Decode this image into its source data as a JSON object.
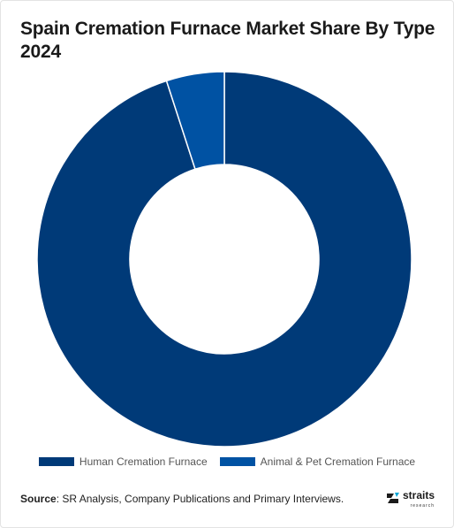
{
  "title": "Spain Cremation Furnace Market Share By Type 2024",
  "chart_data": {
    "type": "pie",
    "donut": true,
    "title": "Spain Cremation Furnace Market Share By Type 2024",
    "categories": [
      "Human Cremation Furnace",
      "Animal & Pet Cremation Furnace"
    ],
    "values": [
      95,
      5
    ],
    "colors": [
      "#003a78",
      "#0052a3"
    ],
    "legend_position": "bottom"
  },
  "legend": {
    "items": [
      {
        "label": "Human Cremation Furnace",
        "color": "#003a78"
      },
      {
        "label": "Animal & Pet Cremation Furnace",
        "color": "#0052a3"
      }
    ]
  },
  "source": {
    "label": "Source",
    "text": ": SR Analysis, Company Publications and Primary Interviews."
  },
  "logo": {
    "name": "straits",
    "tagline": "research"
  }
}
